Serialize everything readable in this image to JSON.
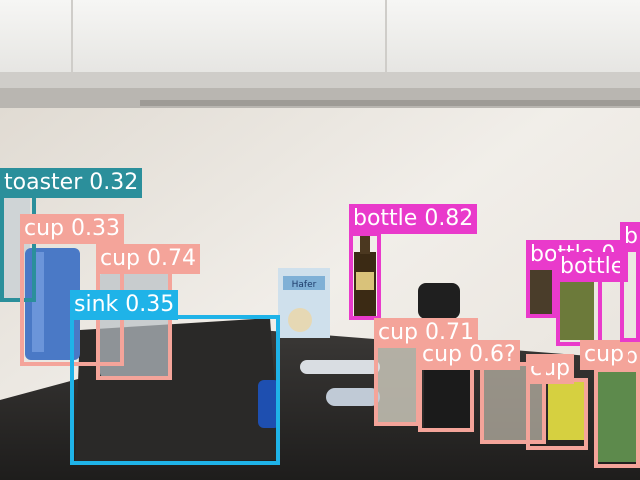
{
  "image": {
    "title": "object detection overlay on kitchen counter photo",
    "label_text_color": "#ffffff"
  },
  "class_colors": {
    "cup": "#f4a49a",
    "bottle": "#e93acb",
    "sink": "#1fb3e8",
    "toaster": "#2b8f9b"
  },
  "detections": [
    {
      "label": "toaster",
      "confidence": "0.32",
      "text": "toaster 0.32"
    },
    {
      "label": "cup",
      "confidence": "0.33",
      "text": "cup 0.33"
    },
    {
      "label": "cup",
      "confidence": "0.74",
      "text": "cup 0.74"
    },
    {
      "label": "sink",
      "confidence": "0.35",
      "text": "sink 0.35"
    },
    {
      "label": "bottle",
      "confidence": "0.82",
      "text": "bottle 0.82"
    },
    {
      "label": "cup",
      "confidence": "0.71",
      "text": "cup 0.71"
    },
    {
      "label": "cup",
      "confidence": "0.6?",
      "text": "cup 0.6?"
    },
    {
      "label": "bottle",
      "confidence": "0.?",
      "text": "bottle 0."
    },
    {
      "label": "bottle",
      "confidence": "",
      "text": "bottle"
    },
    {
      "label": "cup",
      "confidence": "0.?",
      "text": "cup"
    },
    {
      "label": "cup",
      "confidence": "0.6?",
      "text": "cup 0.6"
    },
    {
      "label": "cup",
      "confidence": "",
      "text": "cup"
    },
    {
      "label": "bottle",
      "confidence": "",
      "text": "b"
    }
  ],
  "product_box_text": "Hafer"
}
